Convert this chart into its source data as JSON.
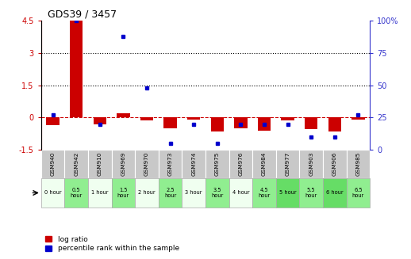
{
  "title": "GDS39 / 3457",
  "samples": [
    "GSM940",
    "GSM942",
    "GSM910",
    "GSM969",
    "GSM970",
    "GSM973",
    "GSM974",
    "GSM975",
    "GSM976",
    "GSM984",
    "GSM977",
    "GSM903",
    "GSM906",
    "GSM985"
  ],
  "time_labels": [
    "0 hour",
    "0.5\nhour",
    "1 hour",
    "1.5\nhour",
    "2 hour",
    "2.5\nhour",
    "3 hour",
    "3.5\nhour",
    "4 hour",
    "4.5\nhour",
    "5 hour",
    "5.5\nhour",
    "6 hour",
    "6.5\nhour"
  ],
  "log_ratio": [
    -0.35,
    4.5,
    -0.3,
    0.2,
    -0.15,
    -0.5,
    -0.1,
    -0.65,
    -0.5,
    -0.6,
    -0.12,
    -0.55,
    -0.65,
    -0.1
  ],
  "percentile": [
    27,
    100,
    20,
    88,
    48,
    5,
    20,
    5,
    20,
    20,
    20,
    10,
    10,
    27
  ],
  "ylim_left": [
    -1.5,
    4.5
  ],
  "ylim_right": [
    0,
    100
  ],
  "yticks_left": [
    -1.5,
    0,
    1.5,
    3,
    4.5
  ],
  "yticks_right": [
    0,
    25,
    50,
    75,
    100
  ],
  "bar_color": "#cc0000",
  "dot_color": "#0000cc",
  "left_tick_color": "#cc0000",
  "right_tick_color": "#3333cc",
  "time_colors": [
    "#f0fff0",
    "#90ee90",
    "#f0fff0",
    "#90ee90",
    "#f0fff0",
    "#90ee90",
    "#f0fff0",
    "#90ee90",
    "#f0fff0",
    "#90ee90",
    "#66dd66",
    "#90ee90",
    "#66dd66",
    "#90ee90"
  ],
  "gsm_bg": "#c8c8c8",
  "gsm_border": "#ffffff"
}
